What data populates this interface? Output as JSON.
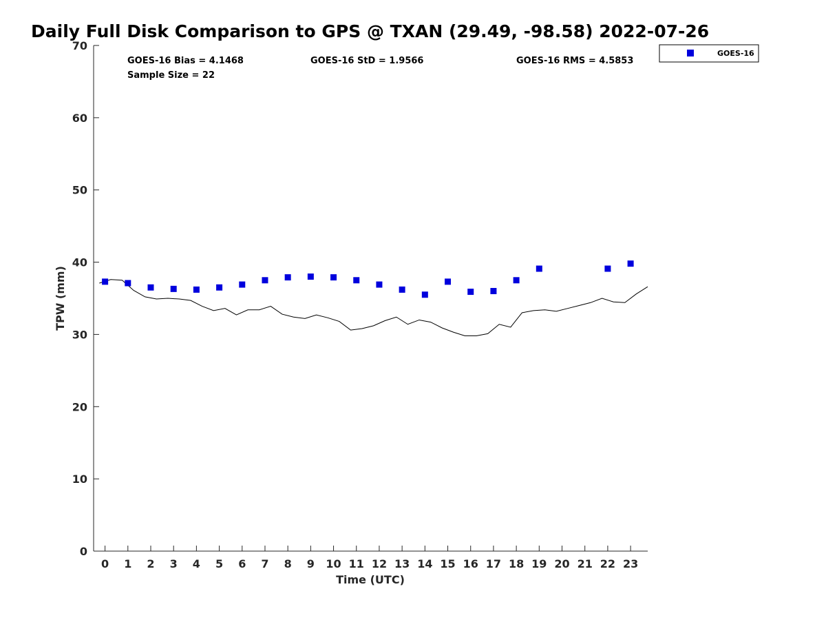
{
  "chart_data": {
    "type": "scatter",
    "title": "Daily Full Disk Comparison to GPS @ TXAN (29.49, -98.58) 2022-07-26",
    "xlabel": "Time (UTC)",
    "ylabel": "TPW (mm)",
    "xlim": [
      -0.5,
      23.75
    ],
    "ylim": [
      0,
      70
    ],
    "x_ticks": [
      "0",
      "1",
      "2",
      "3",
      "4",
      "5",
      "6",
      "7",
      "8",
      "9",
      "10",
      "11",
      "12",
      "13",
      "14",
      "15",
      "16",
      "17",
      "18",
      "19",
      "20",
      "21",
      "22",
      "23"
    ],
    "y_ticks": [
      "0",
      "10",
      "20",
      "30",
      "40",
      "50",
      "60",
      "70"
    ],
    "grid": false,
    "legend_position": "top-right",
    "stats": {
      "bias": "GOES-16 Bias = 4.1468",
      "std": "GOES-16 StD = 1.9566",
      "rms": "GOES-16 RMS = 4.5853",
      "sample": "Sample Size = 22"
    },
    "series": [
      {
        "name": "GOES-16",
        "type": "scatter",
        "color": "#0000dd",
        "marker": "square",
        "x": [
          0,
          1,
          2,
          3,
          4,
          5,
          6,
          7,
          8,
          9,
          10,
          11,
          12,
          13,
          14,
          15,
          16,
          17,
          18,
          19,
          22,
          23
        ],
        "y": [
          37.3,
          37.1,
          36.5,
          36.3,
          36.2,
          36.5,
          36.9,
          37.5,
          37.9,
          38.0,
          37.9,
          37.5,
          36.9,
          36.2,
          35.5,
          37.3,
          35.9,
          36.0,
          37.5,
          39.1,
          39.1,
          39.8
        ]
      },
      {
        "type": "line",
        "color": "#000000",
        "x": [
          -0.25,
          0.25,
          0.75,
          1.25,
          1.75,
          2.25,
          2.75,
          3.25,
          3.75,
          4.25,
          4.75,
          5.25,
          5.75,
          6.25,
          6.75,
          7.25,
          7.75,
          8.25,
          8.75,
          9.25,
          9.75,
          10.25,
          10.75,
          11.25,
          11.75,
          12.25,
          12.75,
          13.25,
          13.75,
          14.25,
          14.75,
          15.25,
          15.75,
          16.25,
          16.75,
          17.25,
          17.75,
          18.25,
          18.75,
          19.25,
          19.75,
          20.25,
          20.75,
          21.25,
          21.75,
          22.25,
          22.75,
          23.25,
          23.75
        ],
        "y": [
          37.1,
          37.6,
          37.5,
          36.1,
          35.2,
          34.9,
          35.0,
          34.9,
          34.7,
          33.9,
          33.3,
          33.6,
          32.7,
          33.4,
          33.4,
          33.9,
          32.8,
          32.4,
          32.2,
          32.7,
          32.3,
          31.8,
          30.6,
          30.8,
          31.2,
          31.9,
          32.4,
          31.4,
          32.0,
          31.7,
          30.9,
          30.3,
          29.8,
          29.8,
          30.1,
          31.4,
          31.0,
          33.0,
          33.3,
          33.4,
          33.2,
          33.6,
          34.0,
          34.4,
          35.0,
          34.5,
          34.4,
          35.6,
          36.6
        ]
      }
    ]
  }
}
